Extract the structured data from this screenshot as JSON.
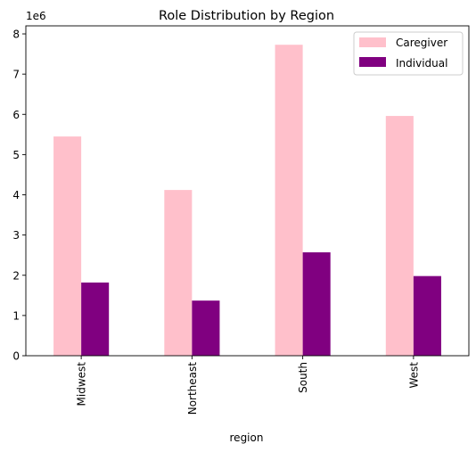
{
  "chart_data": {
    "type": "bar",
    "title": "Role Distribution by Region",
    "xlabel": "region",
    "ylabel": "",
    "y_offset_label": "1e6",
    "categories": [
      "Midwest",
      "Northeast",
      "South",
      "West"
    ],
    "series": [
      {
        "name": "Caregiver",
        "color": "#ffc0cb",
        "values": [
          5450000,
          4120000,
          7730000,
          5960000
        ]
      },
      {
        "name": "Individual",
        "color": "#800080",
        "values": [
          1820000,
          1370000,
          2570000,
          1980000
        ]
      }
    ],
    "ylim": [
      0,
      8200000
    ],
    "yticks": [
      0,
      1000000,
      2000000,
      3000000,
      4000000,
      5000000,
      6000000,
      7000000,
      8000000
    ],
    "ytick_labels": [
      "0",
      "1",
      "2",
      "3",
      "4",
      "5",
      "6",
      "7",
      "8"
    ],
    "grid": false,
    "legend_position": "top-right"
  }
}
